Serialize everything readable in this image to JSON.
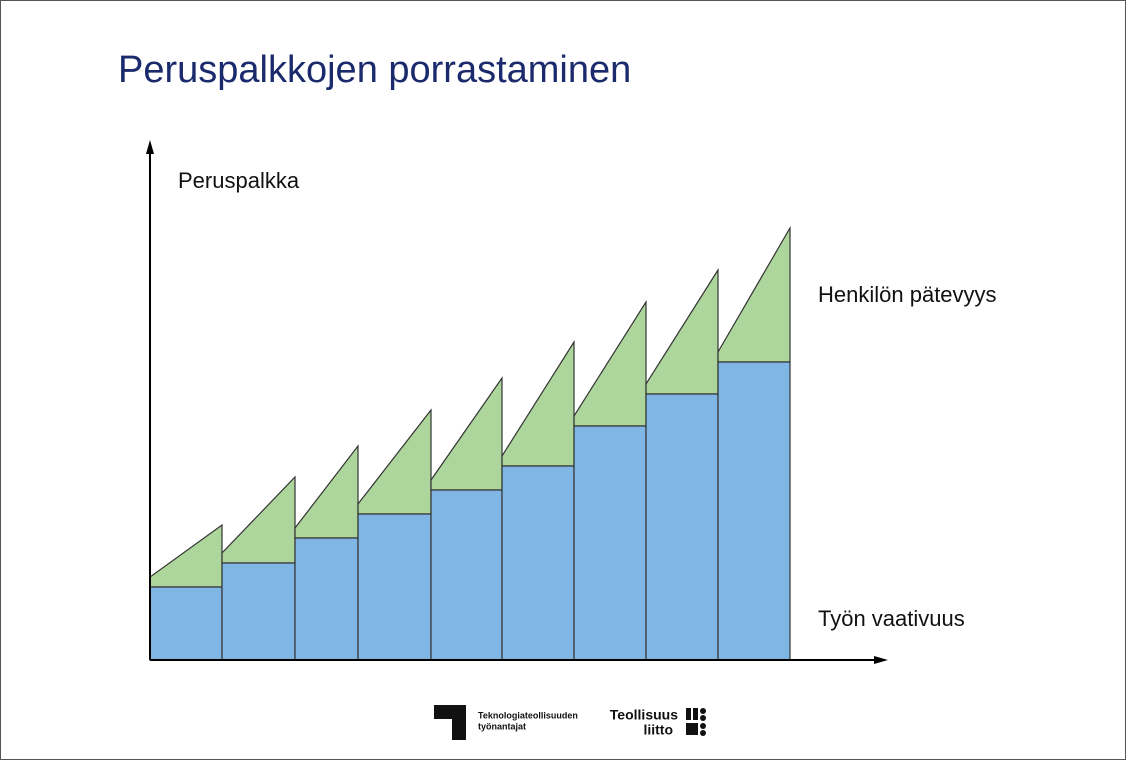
{
  "header": {
    "title": "Peruspalkkojen porrastaminen"
  },
  "diagram": {
    "y_axis_label": "Peruspalkka",
    "upper_label": "Henkilön pätevyys",
    "x_axis_label": "Työn vaativuus"
  },
  "footer": {
    "logo1": [
      "Teknologiateollisuuden",
      "työnantajat"
    ],
    "logo2": [
      "Teollisuus",
      "liitto"
    ]
  }
}
